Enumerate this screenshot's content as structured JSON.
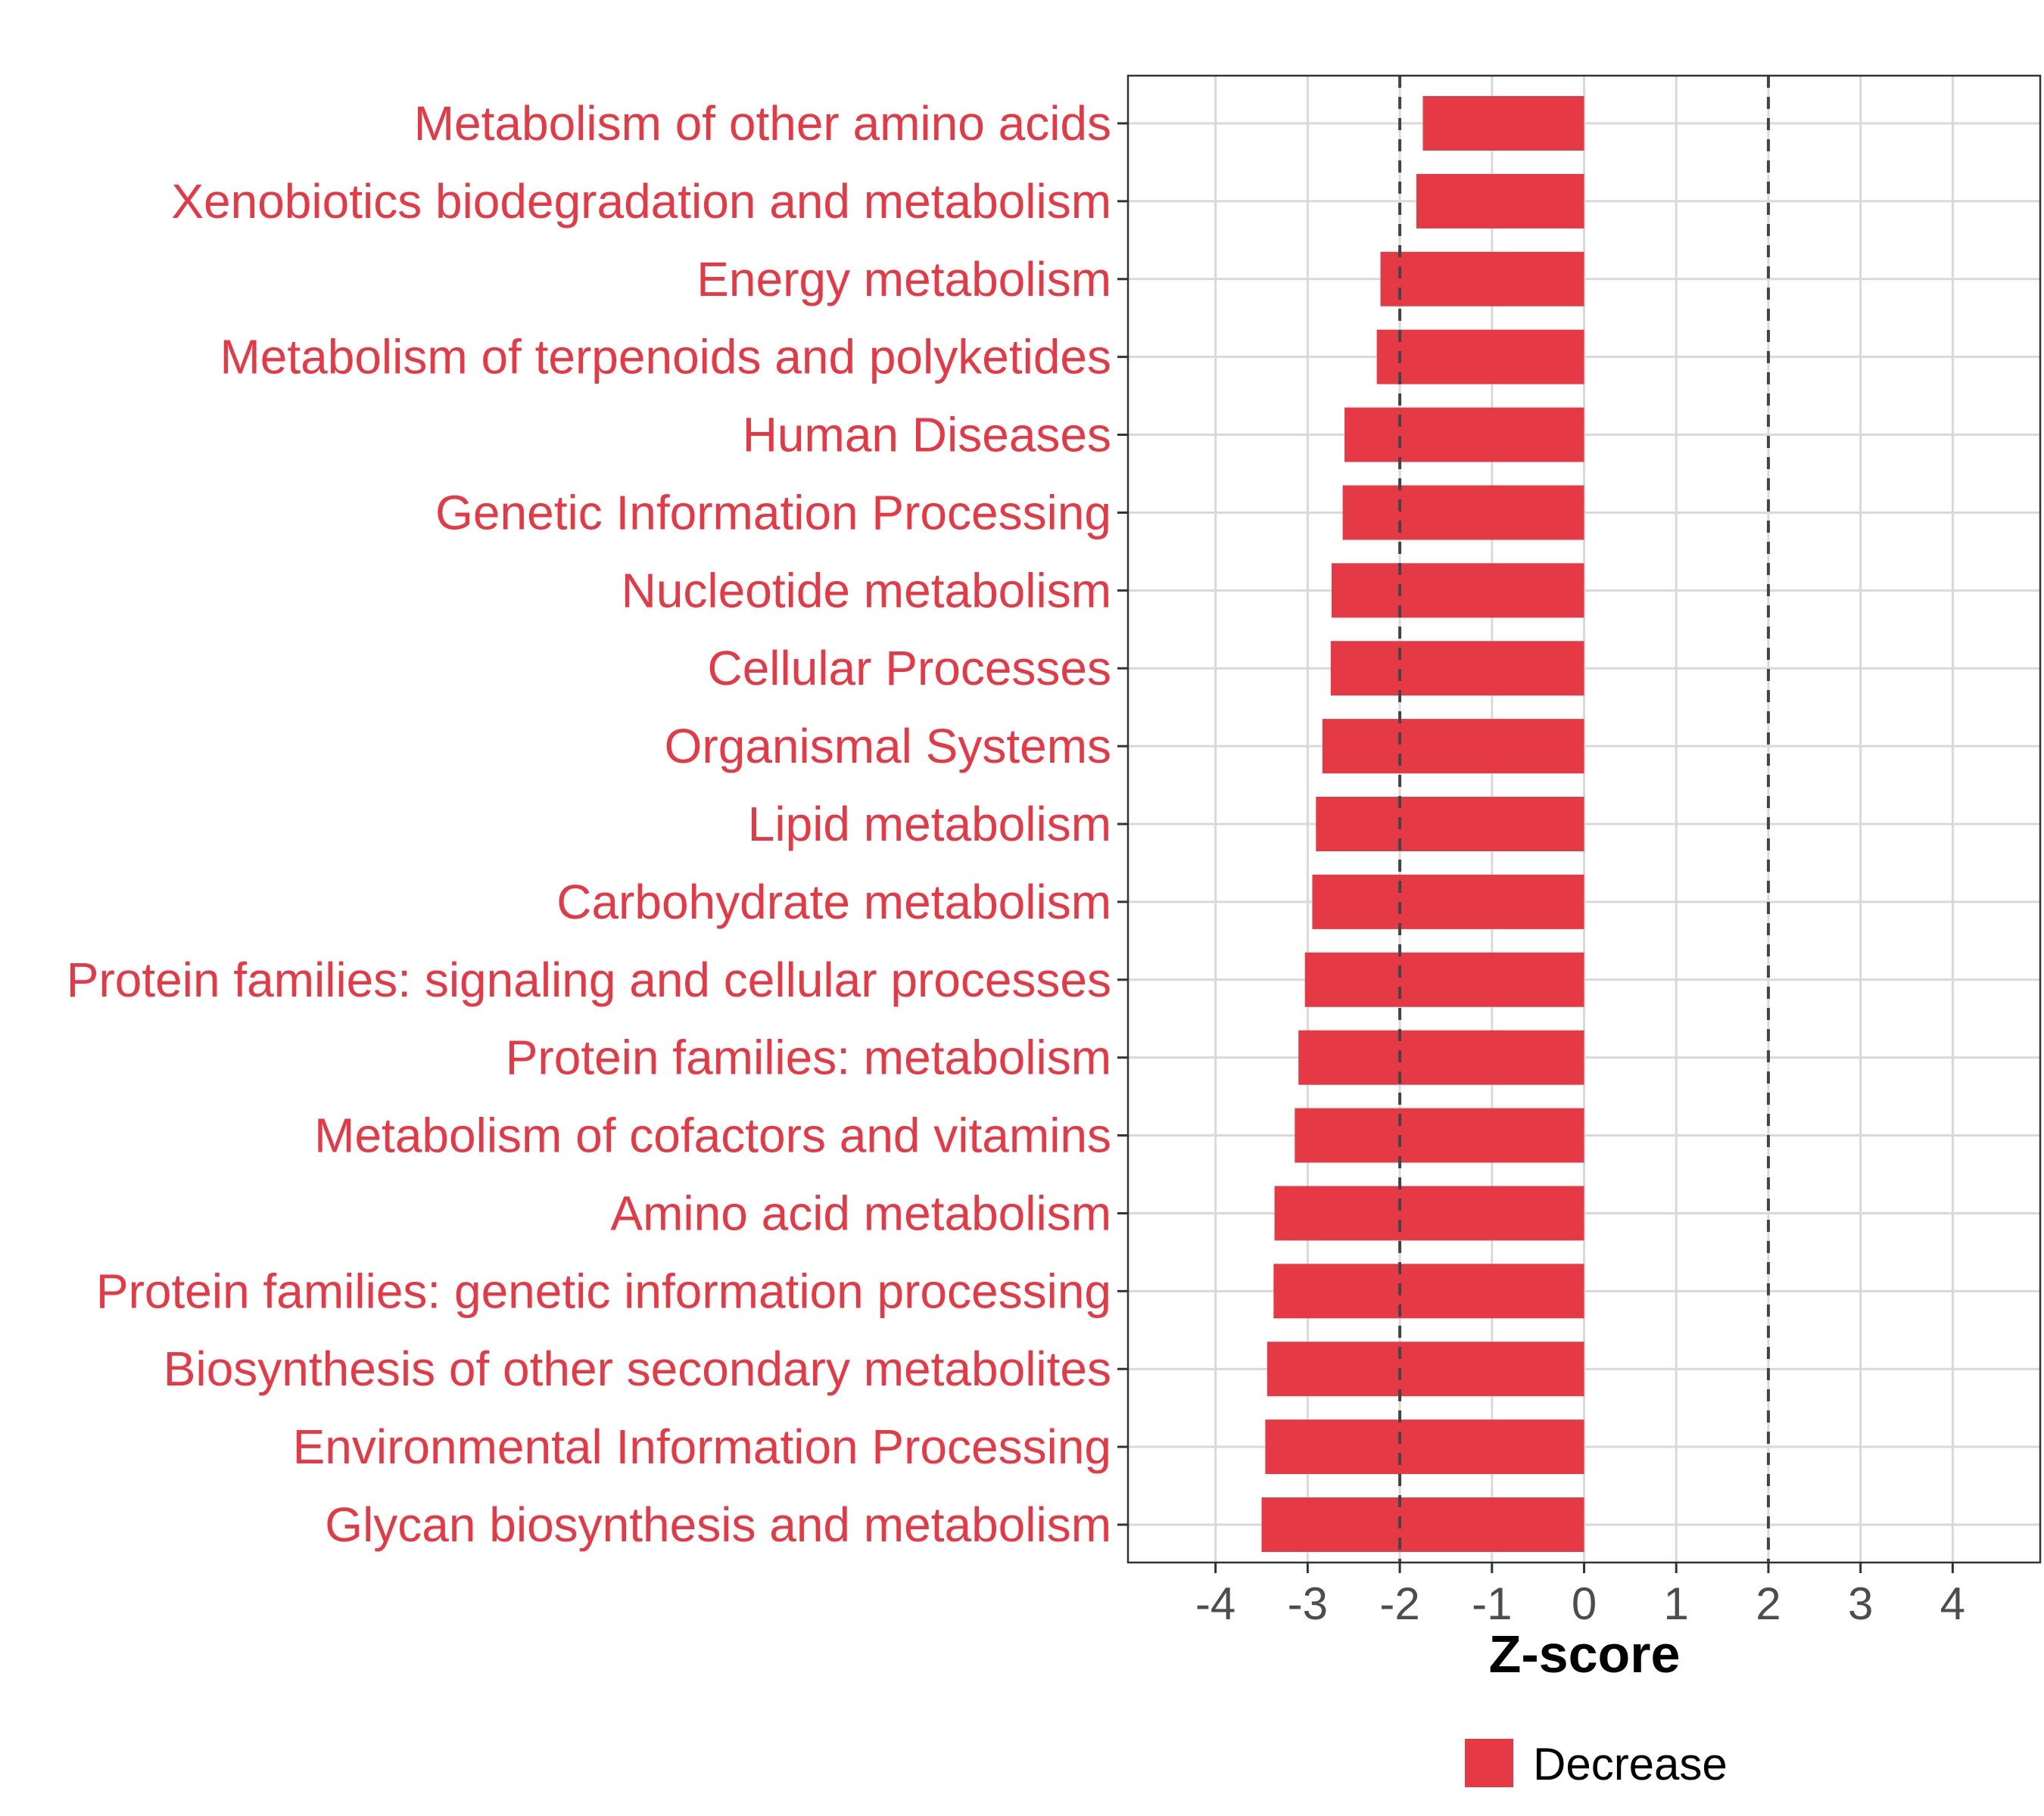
{
  "chart_data": {
    "type": "bar",
    "orientation": "horizontal",
    "categories": [
      "Metabolism of other amino acids",
      "Xenobiotics biodegradation and metabolism",
      "Energy metabolism",
      "Metabolism of terpenoids and polyketides",
      "Human Diseases",
      "Genetic Information Processing",
      "Nucleotide metabolism",
      "Cellular Processes",
      "Organismal Systems",
      "Lipid metabolism",
      "Carbohydrate metabolism",
      "Protein families: signaling and cellular processes",
      "Protein families: metabolism",
      "Metabolism of cofactors and vitamins",
      "Amino acid metabolism",
      "Protein families: genetic information processing",
      "Biosynthesis of other secondary metabolites",
      "Environmental Information Processing",
      "Glycan biosynthesis and metabolism"
    ],
    "values": [
      -1.75,
      -1.82,
      -2.21,
      -2.25,
      -2.6,
      -2.62,
      -2.74,
      -2.75,
      -2.84,
      -2.91,
      -2.95,
      -3.03,
      -3.1,
      -3.14,
      -3.36,
      -3.37,
      -3.44,
      -3.46,
      -3.5
    ],
    "series": [
      {
        "name": "Decrease",
        "color": "#e63946"
      }
    ],
    "xlabel": "Z-score",
    "ylabel": "",
    "xlim": [
      -4.95,
      4.95
    ],
    "xticks": [
      -4,
      -3,
      -2,
      -1,
      0,
      1,
      2,
      3,
      4
    ],
    "xtick_labels": [
      "-4",
      "-3",
      "-2",
      "-1",
      "0",
      "1",
      "2",
      "3",
      "4"
    ],
    "reference_lines": [
      -2,
      2
    ],
    "grid": true,
    "legend": {
      "position": "bottom",
      "entries": [
        "Decrease"
      ]
    },
    "label_color": "#e63946"
  }
}
